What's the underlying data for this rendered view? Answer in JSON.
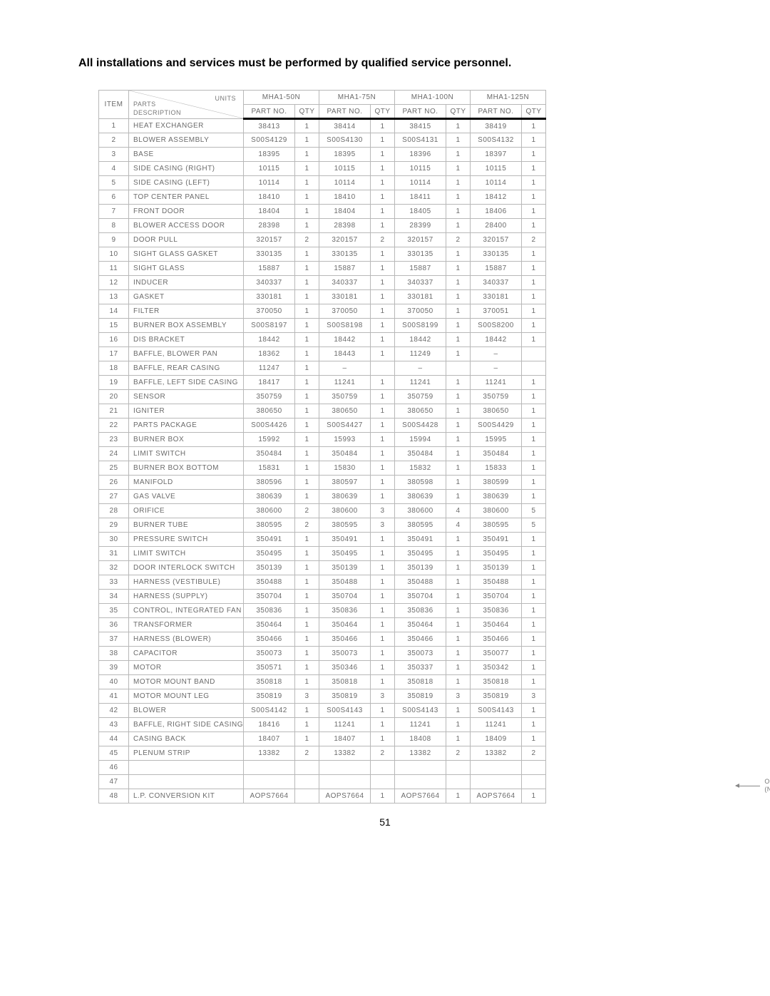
{
  "heading": "All installations and services must be performed by qualified service personnel.",
  "page_number": "51",
  "callout": {
    "line1": "OPTIONAL KIT",
    "line2": "(NOT SHOWN)"
  },
  "header": {
    "units_label": "UNITS",
    "parts_label": "PARTS",
    "desc_label": "DESCRIPTION",
    "item_label": "ITEM",
    "part_no_label": "PART NO.",
    "qty_label": "QTY",
    "models": [
      "MHA1-50N",
      "MHA1-75N",
      "MHA1-100N",
      "MHA1-125N"
    ]
  },
  "rows": [
    {
      "i": "1",
      "d": "HEAT EXCHANGER",
      "c": [
        [
          "38413",
          "1"
        ],
        [
          "38414",
          "1"
        ],
        [
          "38415",
          "1"
        ],
        [
          "38419",
          "1"
        ]
      ]
    },
    {
      "i": "2",
      "d": "BLOWER ASSEMBLY",
      "c": [
        [
          "S00S4129",
          "1"
        ],
        [
          "S00S4130",
          "1"
        ],
        [
          "S00S4131",
          "1"
        ],
        [
          "S00S4132",
          "1"
        ]
      ]
    },
    {
      "i": "3",
      "d": "BASE",
      "c": [
        [
          "18395",
          "1"
        ],
        [
          "18395",
          "1"
        ],
        [
          "18396",
          "1"
        ],
        [
          "18397",
          "1"
        ]
      ]
    },
    {
      "i": "4",
      "d": "SIDE CASING (RIGHT)",
      "c": [
        [
          "10115",
          "1"
        ],
        [
          "10115",
          "1"
        ],
        [
          "10115",
          "1"
        ],
        [
          "10115",
          "1"
        ]
      ]
    },
    {
      "i": "5",
      "d": "SIDE CASING (LEFT)",
      "c": [
        [
          "10114",
          "1"
        ],
        [
          "10114",
          "1"
        ],
        [
          "10114",
          "1"
        ],
        [
          "10114",
          "1"
        ]
      ]
    },
    {
      "i": "6",
      "d": "TOP CENTER PANEL",
      "c": [
        [
          "18410",
          "1"
        ],
        [
          "18410",
          "1"
        ],
        [
          "18411",
          "1"
        ],
        [
          "18412",
          "1"
        ]
      ]
    },
    {
      "i": "7",
      "d": "FRONT DOOR",
      "c": [
        [
          "18404",
          "1"
        ],
        [
          "18404",
          "1"
        ],
        [
          "18405",
          "1"
        ],
        [
          "18406",
          "1"
        ]
      ]
    },
    {
      "i": "8",
      "d": "BLOWER ACCESS DOOR",
      "c": [
        [
          "28398",
          "1"
        ],
        [
          "28398",
          "1"
        ],
        [
          "28399",
          "1"
        ],
        [
          "28400",
          "1"
        ]
      ]
    },
    {
      "i": "9",
      "d": "DOOR PULL",
      "c": [
        [
          "320157",
          "2"
        ],
        [
          "320157",
          "2"
        ],
        [
          "320157",
          "2"
        ],
        [
          "320157",
          "2"
        ]
      ]
    },
    {
      "i": "10",
      "d": "SIGHT GLASS GASKET",
      "c": [
        [
          "330135",
          "1"
        ],
        [
          "330135",
          "1"
        ],
        [
          "330135",
          "1"
        ],
        [
          "330135",
          "1"
        ]
      ]
    },
    {
      "i": "11",
      "d": "SIGHT GLASS",
      "c": [
        [
          "15887",
          "1"
        ],
        [
          "15887",
          "1"
        ],
        [
          "15887",
          "1"
        ],
        [
          "15887",
          "1"
        ]
      ]
    },
    {
      "i": "12",
      "d": "INDUCER",
      "c": [
        [
          "340337",
          "1"
        ],
        [
          "340337",
          "1"
        ],
        [
          "340337",
          "1"
        ],
        [
          "340337",
          "1"
        ]
      ]
    },
    {
      "i": "13",
      "d": "GASKET",
      "c": [
        [
          "330181",
          "1"
        ],
        [
          "330181",
          "1"
        ],
        [
          "330181",
          "1"
        ],
        [
          "330181",
          "1"
        ]
      ]
    },
    {
      "i": "14",
      "d": "FILTER",
      "c": [
        [
          "370050",
          "1"
        ],
        [
          "370050",
          "1"
        ],
        [
          "370050",
          "1"
        ],
        [
          "370051",
          "1"
        ]
      ]
    },
    {
      "i": "15",
      "d": "BURNER BOX ASSEMBLY",
      "c": [
        [
          "S00S8197",
          "1"
        ],
        [
          "S00S8198",
          "1"
        ],
        [
          "S00S8199",
          "1"
        ],
        [
          "S00S8200",
          "1"
        ]
      ]
    },
    {
      "i": "16",
      "d": "DIS BRACKET",
      "c": [
        [
          "18442",
          "1"
        ],
        [
          "18442",
          "1"
        ],
        [
          "18442",
          "1"
        ],
        [
          "18442",
          "1"
        ]
      ]
    },
    {
      "i": "17",
      "d": "BAFFLE, BLOWER PAN",
      "c": [
        [
          "18362",
          "1"
        ],
        [
          "18443",
          "1"
        ],
        [
          "11249",
          "1"
        ],
        [
          "–",
          ""
        ]
      ]
    },
    {
      "i": "18",
      "d": "BAFFLE, REAR CASING",
      "c": [
        [
          "11247",
          "1"
        ],
        [
          "–",
          ""
        ],
        [
          "–",
          ""
        ],
        [
          "–",
          ""
        ]
      ]
    },
    {
      "i": "19",
      "d": "BAFFLE, LEFT SIDE CASING",
      "c": [
        [
          "18417",
          "1"
        ],
        [
          "11241",
          "1"
        ],
        [
          "11241",
          "1"
        ],
        [
          "11241",
          "1"
        ]
      ]
    },
    {
      "i": "20",
      "d": "SENSOR",
      "c": [
        [
          "350759",
          "1"
        ],
        [
          "350759",
          "1"
        ],
        [
          "350759",
          "1"
        ],
        [
          "350759",
          "1"
        ]
      ]
    },
    {
      "i": "21",
      "d": "IGNITER",
      "c": [
        [
          "380650",
          "1"
        ],
        [
          "380650",
          "1"
        ],
        [
          "380650",
          "1"
        ],
        [
          "380650",
          "1"
        ]
      ]
    },
    {
      "i": "22",
      "d": "PARTS PACKAGE",
      "c": [
        [
          "S00S4426",
          "1"
        ],
        [
          "S00S4427",
          "1"
        ],
        [
          "S00S4428",
          "1"
        ],
        [
          "S00S4429",
          "1"
        ]
      ]
    },
    {
      "i": "23",
      "d": "BURNER BOX",
      "c": [
        [
          "15992",
          "1"
        ],
        [
          "15993",
          "1"
        ],
        [
          "15994",
          "1"
        ],
        [
          "15995",
          "1"
        ]
      ]
    },
    {
      "i": "24",
      "d": "LIMIT SWITCH",
      "c": [
        [
          "350484",
          "1"
        ],
        [
          "350484",
          "1"
        ],
        [
          "350484",
          "1"
        ],
        [
          "350484",
          "1"
        ]
      ]
    },
    {
      "i": "25",
      "d": "BURNER BOX BOTTOM",
      "c": [
        [
          "15831",
          "1"
        ],
        [
          "15830",
          "1"
        ],
        [
          "15832",
          "1"
        ],
        [
          "15833",
          "1"
        ]
      ]
    },
    {
      "i": "26",
      "d": "MANIFOLD",
      "c": [
        [
          "380596",
          "1"
        ],
        [
          "380597",
          "1"
        ],
        [
          "380598",
          "1"
        ],
        [
          "380599",
          "1"
        ]
      ]
    },
    {
      "i": "27",
      "d": "GAS VALVE",
      "c": [
        [
          "380639",
          "1"
        ],
        [
          "380639",
          "1"
        ],
        [
          "380639",
          "1"
        ],
        [
          "380639",
          "1"
        ]
      ]
    },
    {
      "i": "28",
      "d": "ORIFICE",
      "c": [
        [
          "380600",
          "2"
        ],
        [
          "380600",
          "3"
        ],
        [
          "380600",
          "4"
        ],
        [
          "380600",
          "5"
        ]
      ]
    },
    {
      "i": "29",
      "d": "BURNER TUBE",
      "c": [
        [
          "380595",
          "2"
        ],
        [
          "380595",
          "3"
        ],
        [
          "380595",
          "4"
        ],
        [
          "380595",
          "5"
        ]
      ]
    },
    {
      "i": "30",
      "d": "PRESSURE SWITCH",
      "c": [
        [
          "350491",
          "1"
        ],
        [
          "350491",
          "1"
        ],
        [
          "350491",
          "1"
        ],
        [
          "350491",
          "1"
        ]
      ]
    },
    {
      "i": "31",
      "d": "LIMIT SWITCH",
      "c": [
        [
          "350495",
          "1"
        ],
        [
          "350495",
          "1"
        ],
        [
          "350495",
          "1"
        ],
        [
          "350495",
          "1"
        ]
      ]
    },
    {
      "i": "32",
      "d": "DOOR INTERLOCK SWITCH",
      "c": [
        [
          "350139",
          "1"
        ],
        [
          "350139",
          "1"
        ],
        [
          "350139",
          "1"
        ],
        [
          "350139",
          "1"
        ]
      ]
    },
    {
      "i": "33",
      "d": "HARNESS (VESTIBULE)",
      "c": [
        [
          "350488",
          "1"
        ],
        [
          "350488",
          "1"
        ],
        [
          "350488",
          "1"
        ],
        [
          "350488",
          "1"
        ]
      ]
    },
    {
      "i": "34",
      "d": "HARNESS (SUPPLY)",
      "c": [
        [
          "350704",
          "1"
        ],
        [
          "350704",
          "1"
        ],
        [
          "350704",
          "1"
        ],
        [
          "350704",
          "1"
        ]
      ]
    },
    {
      "i": "35",
      "d": "CONTROL, INTEGRATED FAN",
      "c": [
        [
          "350836",
          "1"
        ],
        [
          "350836",
          "1"
        ],
        [
          "350836",
          "1"
        ],
        [
          "350836",
          "1"
        ]
      ]
    },
    {
      "i": "36",
      "d": "TRANSFORMER",
      "c": [
        [
          "350464",
          "1"
        ],
        [
          "350464",
          "1"
        ],
        [
          "350464",
          "1"
        ],
        [
          "350464",
          "1"
        ]
      ]
    },
    {
      "i": "37",
      "d": "HARNESS (BLOWER)",
      "c": [
        [
          "350466",
          "1"
        ],
        [
          "350466",
          "1"
        ],
        [
          "350466",
          "1"
        ],
        [
          "350466",
          "1"
        ]
      ]
    },
    {
      "i": "38",
      "d": "CAPACITOR",
      "c": [
        [
          "350073",
          "1"
        ],
        [
          "350073",
          "1"
        ],
        [
          "350073",
          "1"
        ],
        [
          "350077",
          "1"
        ]
      ]
    },
    {
      "i": "39",
      "d": "MOTOR",
      "c": [
        [
          "350571",
          "1"
        ],
        [
          "350346",
          "1"
        ],
        [
          "350337",
          "1"
        ],
        [
          "350342",
          "1"
        ]
      ]
    },
    {
      "i": "40",
      "d": "MOTOR MOUNT BAND",
      "c": [
        [
          "350818",
          "1"
        ],
        [
          "350818",
          "1"
        ],
        [
          "350818",
          "1"
        ],
        [
          "350818",
          "1"
        ]
      ]
    },
    {
      "i": "41",
      "d": "MOTOR MOUNT LEG",
      "c": [
        [
          "350819",
          "3"
        ],
        [
          "350819",
          "3"
        ],
        [
          "350819",
          "3"
        ],
        [
          "350819",
          "3"
        ]
      ]
    },
    {
      "i": "42",
      "d": "BLOWER",
      "c": [
        [
          "S00S4142",
          "1"
        ],
        [
          "S00S4143",
          "1"
        ],
        [
          "S00S4143",
          "1"
        ],
        [
          "S00S4143",
          "1"
        ]
      ]
    },
    {
      "i": "43",
      "d": "BAFFLE, RIGHT SIDE CASING",
      "c": [
        [
          "18416",
          "1"
        ],
        [
          "11241",
          "1"
        ],
        [
          "11241",
          "1"
        ],
        [
          "11241",
          "1"
        ]
      ]
    },
    {
      "i": "44",
      "d": "CASING BACK",
      "c": [
        [
          "18407",
          "1"
        ],
        [
          "18407",
          "1"
        ],
        [
          "18408",
          "1"
        ],
        [
          "18409",
          "1"
        ]
      ]
    },
    {
      "i": "45",
      "d": "PLENUM STRIP",
      "c": [
        [
          "13382",
          "2"
        ],
        [
          "13382",
          "2"
        ],
        [
          "13382",
          "2"
        ],
        [
          "13382",
          "2"
        ]
      ]
    },
    {
      "i": "46",
      "d": "",
      "c": [
        [
          "",
          ""
        ],
        [
          "",
          ""
        ],
        [
          "",
          ""
        ],
        [
          "",
          ""
        ]
      ]
    },
    {
      "i": "47",
      "d": "",
      "c": [
        [
          "",
          ""
        ],
        [
          "",
          ""
        ],
        [
          "",
          ""
        ],
        [
          "",
          ""
        ]
      ]
    },
    {
      "i": "48",
      "d": "L.P. CONVERSION KIT",
      "c": [
        [
          "AOPS7664",
          ""
        ],
        [
          "AOPS7664",
          "1"
        ],
        [
          "AOPS7664",
          "1"
        ],
        [
          "AOPS7664",
          "1"
        ]
      ]
    }
  ]
}
